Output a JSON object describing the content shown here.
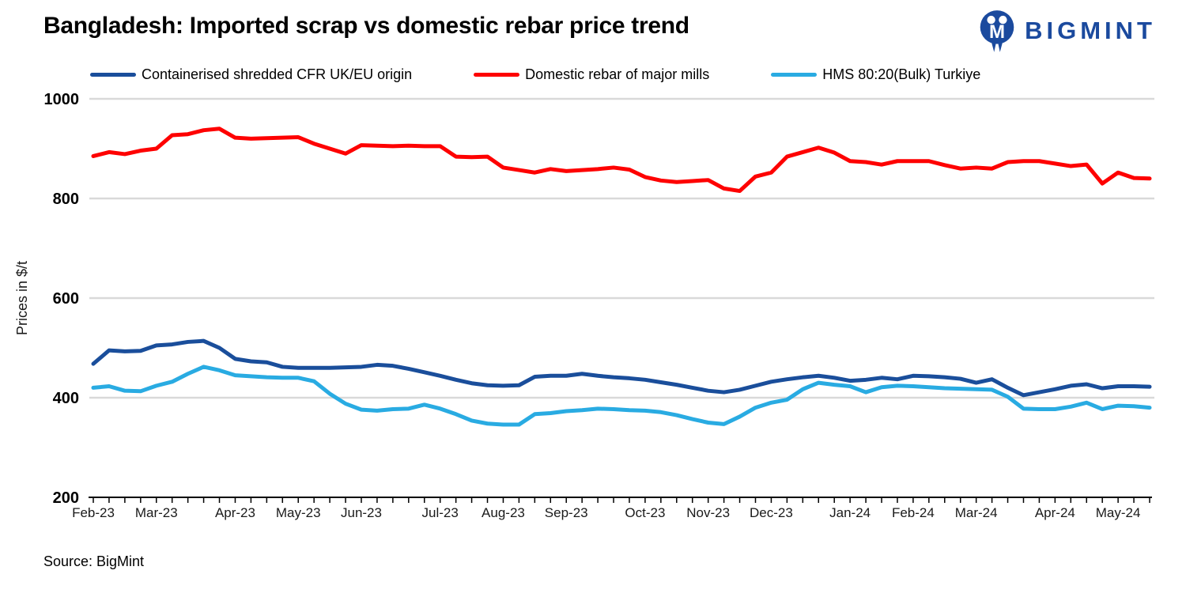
{
  "header": {
    "title": "Bangladesh: Imported scrap vs domestic rebar price trend",
    "logo_text": "BIGMINT"
  },
  "footer": {
    "source": "Source: BigMint"
  },
  "colors": {
    "logo_blue": "#1b4a9e",
    "gridline": "#d9d9d9",
    "axis": "#000000"
  },
  "chart_data": {
    "type": "line",
    "title": "Bangladesh: Imported scrap vs domestic rebar price trend",
    "xlabel": "",
    "ylabel": "Prices in $/t",
    "ylim": [
      200,
      1000
    ],
    "yticks": [
      200,
      400,
      600,
      800,
      1000
    ],
    "grid": "horizontal-only",
    "legend_position": "top",
    "x_unit": "weekly",
    "x_tick_labels": [
      "Feb-23",
      "Mar-23",
      "Apr-23",
      "May-23",
      "Jun-23",
      "Jul-23",
      "Aug-23",
      "Sep-23",
      "Oct-23",
      "Nov-23",
      "Dec-23",
      "Jan-24",
      "Feb-24",
      "Mar-24",
      "Apr-24",
      "May-24"
    ],
    "month_start_indices": [
      0,
      4,
      9,
      13,
      17,
      22,
      26,
      30,
      35,
      39,
      43,
      48,
      52,
      56,
      61,
      65
    ],
    "n_points": 68,
    "series": [
      {
        "name": "Containerised shredded CFR UK/EU origin",
        "color": "#1a4e9b",
        "values": [
          468,
          495,
          493,
          494,
          505,
          507,
          512,
          514,
          500,
          478,
          473,
          471,
          462,
          460,
          460,
          460,
          461,
          462,
          466,
          464,
          458,
          451,
          444,
          436,
          429,
          425,
          424,
          425,
          442,
          444,
          444,
          448,
          444,
          441,
          439,
          436,
          431,
          426,
          420,
          414,
          411,
          416,
          424,
          432,
          437,
          441,
          444,
          440,
          434,
          436,
          440,
          437,
          444,
          443,
          441,
          438,
          430,
          437,
          420,
          405,
          411,
          417,
          424,
          427,
          419,
          423,
          423,
          422
        ]
      },
      {
        "name": "Domestic rebar of major mills",
        "color": "#fe0000",
        "values": [
          885,
          893,
          889,
          896,
          900,
          927,
          929,
          937,
          940,
          922,
          920,
          921,
          922,
          923,
          910,
          900,
          890,
          907,
          906,
          905,
          906,
          905,
          905,
          884,
          883,
          884,
          862,
          857,
          852,
          859,
          855,
          857,
          859,
          862,
          858,
          843,
          836,
          833,
          835,
          837,
          820,
          815,
          844,
          852,
          884,
          893,
          902,
          892,
          875,
          873,
          868,
          875,
          875,
          875,
          867,
          860,
          862,
          860,
          873,
          875,
          875,
          870,
          865,
          868,
          830,
          852,
          841,
          840
        ]
      },
      {
        "name": "HMS 80:20(Bulk) Turkiye",
        "color": "#29abe2",
        "values": [
          420,
          423,
          414,
          413,
          424,
          432,
          448,
          462,
          455,
          445,
          443,
          441,
          440,
          440,
          433,
          408,
          388,
          376,
          374,
          377,
          378,
          386,
          378,
          367,
          354,
          348,
          346,
          346,
          367,
          369,
          373,
          375,
          378,
          377,
          375,
          374,
          371,
          365,
          357,
          350,
          347,
          362,
          380,
          390,
          396,
          417,
          430,
          426,
          423,
          411,
          421,
          424,
          423,
          421,
          419,
          418,
          417,
          416,
          402,
          378,
          377,
          377,
          382,
          390,
          377,
          384,
          383,
          380
        ]
      }
    ]
  }
}
